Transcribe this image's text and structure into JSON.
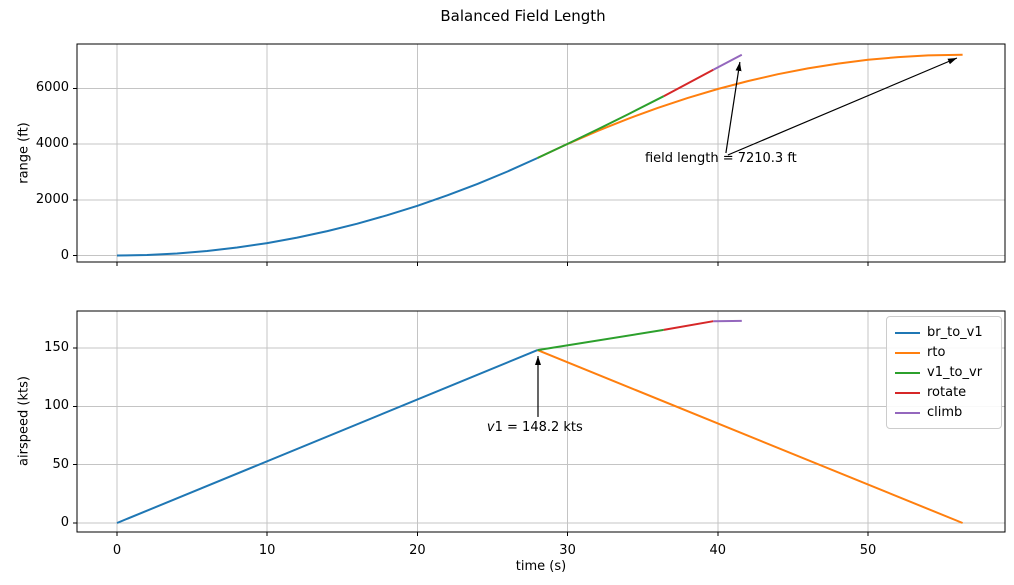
{
  "title": "Balanced Field Length",
  "colors": {
    "background": "#ffffff",
    "grid": "#c4c4c4",
    "spine": "#000000",
    "annotation_arrow": "#000000",
    "legend_border": "#cccccc",
    "blue": "#1f77b4",
    "orange": "#ff7f0e",
    "green": "#2ca02c",
    "red": "#d62728",
    "purple": "#9467bd"
  },
  "legend": {
    "position": "upper right of lower plot",
    "entries": [
      {
        "label": "br_to_v1",
        "color": "#1f77b4"
      },
      {
        "label": "rto",
        "color": "#ff7f0e"
      },
      {
        "label": "v1_to_vr",
        "color": "#2ca02c"
      },
      {
        "label": "rotate",
        "color": "#d62728"
      },
      {
        "label": "climb",
        "color": "#9467bd"
      }
    ]
  },
  "chart_data": [
    {
      "type": "line",
      "title": "",
      "xlabel": "",
      "ylabel": "range (ft)",
      "xlim": [
        -2.66,
        59.12
      ],
      "ylim": [
        -233,
        7594
      ],
      "xticks": [
        0,
        10,
        20,
        30,
        40,
        50
      ],
      "yticks": [
        0,
        2000,
        4000,
        6000
      ],
      "show_x_tick_labels": false,
      "grid": true,
      "series": [
        {
          "name": "br_to_v1",
          "color": "#1f77b4",
          "points": [
            [
              0,
              0
            ],
            [
              2,
              18
            ],
            [
              4,
              71
            ],
            [
              6,
              161
            ],
            [
              8,
              286
            ],
            [
              10,
              446
            ],
            [
              12,
              643
            ],
            [
              14,
              875
            ],
            [
              16,
              1143
            ],
            [
              18,
              1446
            ],
            [
              20,
              1786
            ],
            [
              22,
              2161
            ],
            [
              24,
              2571
            ],
            [
              26,
              3018
            ],
            [
              28,
              3500
            ]
          ]
        },
        {
          "name": "rto",
          "color": "#ff7f0e",
          "points": [
            [
              28,
              3500
            ],
            [
              30,
              4006
            ],
            [
              32,
              4474
            ],
            [
              34,
              4906
            ],
            [
              36,
              5301
            ],
            [
              38,
              5659
            ],
            [
              40,
              5980
            ],
            [
              42,
              6263
            ],
            [
              44,
              6509
            ],
            [
              46,
              6719
            ],
            [
              48,
              6891
            ],
            [
              50,
              7026
            ],
            [
              52,
              7125
            ],
            [
              54,
              7186
            ],
            [
              56.3,
              7210.3
            ]
          ]
        },
        {
          "name": "v1_to_vr",
          "color": "#2ca02c",
          "points": [
            [
              28,
              3500
            ],
            [
              30,
              4007
            ],
            [
              32,
              4528
            ],
            [
              34,
              5061
            ],
            [
              36.4,
              5719
            ]
          ]
        },
        {
          "name": "rotate",
          "color": "#d62728",
          "points": [
            [
              36.4,
              5719
            ],
            [
              38,
              6180
            ],
            [
              39.7,
              6670
            ]
          ]
        },
        {
          "name": "climb",
          "color": "#9467bd",
          "points": [
            [
              39.7,
              6670
            ],
            [
              41.6,
              7210.3
            ]
          ]
        }
      ],
      "annotations": [
        {
          "parts": [
            {
              "text": "field length = 7210.3 ft",
              "italic": false
            }
          ],
          "pos": [
            35.15,
            3752
          ],
          "arrows": [
            {
              "from": [
                40.54,
                3680
              ],
              "to": [
                41.47,
                6948
              ]
            },
            {
              "from": [
                40.67,
                3609
              ],
              "to": [
                55.92,
                7091
              ]
            }
          ]
        }
      ]
    },
    {
      "type": "line",
      "title": "",
      "xlabel": "time (s)",
      "ylabel": "airspeed (kts)",
      "xlim": [
        -2.66,
        59.12
      ],
      "ylim": [
        -7.7,
        181.7
      ],
      "xticks": [
        0,
        10,
        20,
        30,
        40,
        50
      ],
      "yticks": [
        0,
        50,
        100,
        150
      ],
      "show_x_tick_labels": true,
      "grid": true,
      "series": [
        {
          "name": "br_to_v1",
          "color": "#1f77b4",
          "points": [
            [
              0,
              0
            ],
            [
              28,
              148.2
            ]
          ]
        },
        {
          "name": "rto",
          "color": "#ff7f0e",
          "points": [
            [
              28,
              148.2
            ],
            [
              56.3,
              0
            ]
          ]
        },
        {
          "name": "v1_to_vr",
          "color": "#2ca02c",
          "points": [
            [
              28,
              148.2
            ],
            [
              36.4,
              165.5
            ]
          ]
        },
        {
          "name": "rotate",
          "color": "#d62728",
          "points": [
            [
              36.4,
              165.5
            ],
            [
              39.7,
              173
            ]
          ]
        },
        {
          "name": "climb",
          "color": "#9467bd",
          "points": [
            [
              39.7,
              173
            ],
            [
              41.6,
              173.2
            ]
          ]
        }
      ],
      "annotations": [
        {
          "parts": [
            {
              "text": "v",
              "italic": true
            },
            {
              "text": "1 = 148.2 kts",
              "italic": false
            }
          ],
          "pos": [
            24.63,
            88.3
          ],
          "arrows": [
            {
              "from": [
                28.03,
                90.9
              ],
              "to": [
                28.03,
                143.1
              ]
            }
          ]
        }
      ]
    }
  ]
}
